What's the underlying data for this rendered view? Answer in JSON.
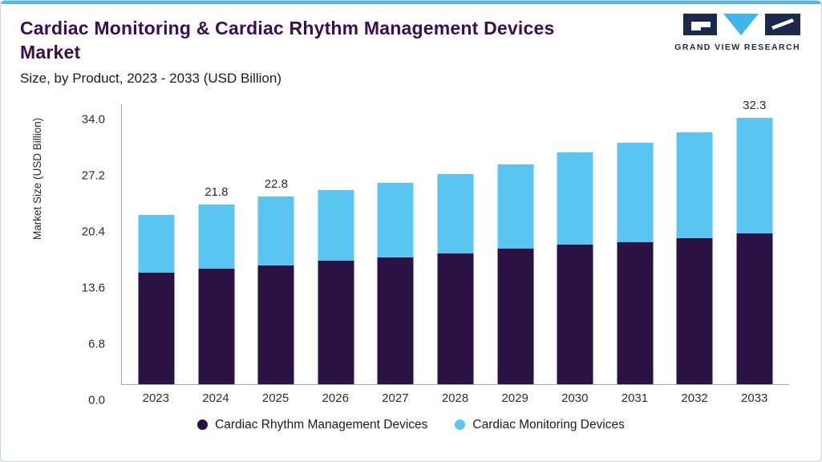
{
  "header": {
    "title": "Cardiac Monitoring & Cardiac Rhythm Management Devices Market",
    "subtitle": "Size, by Product, 2023 - 2033 (USD Billion)"
  },
  "logo": {
    "text": "GRAND VIEW RESEARCH"
  },
  "colors": {
    "accent_top": "#54b8e4",
    "title": "#3b0e52",
    "axis": "#a9a9a9",
    "logo_navy": "#1b2a4a",
    "logo_cyan": "#3fb7e8"
  },
  "chart_data": {
    "type": "bar",
    "stacked": true,
    "title": "Cardiac Monitoring & Cardiac Rhythm Management Devices Market",
    "subtitle": "Size, by Product, 2023 - 2033 (USD Billion)",
    "xlabel": "",
    "ylabel": "Market Size (USD Billion)",
    "ylim": [
      0,
      34
    ],
    "yticks": [
      "0.0",
      "6.8",
      "13.6",
      "20.4",
      "27.2",
      "34.0"
    ],
    "grid": false,
    "legend_position": "bottom",
    "categories": [
      "2023",
      "2024",
      "2025",
      "2026",
      "2027",
      "2028",
      "2029",
      "2030",
      "2031",
      "2032",
      "2033"
    ],
    "series": [
      {
        "name": "Cardiac Rhythm Management Devices",
        "color": "#2b1244",
        "values": [
          13.5,
          14.0,
          14.4,
          15.0,
          15.4,
          15.9,
          16.4,
          16.9,
          17.2,
          17.7,
          18.3
        ]
      },
      {
        "name": "Cardiac Monitoring Devices",
        "color": "#5bc5f1",
        "values": [
          7.0,
          7.8,
          8.4,
          8.6,
          9.0,
          9.6,
          10.3,
          11.2,
          12.1,
          12.9,
          14.0
        ]
      }
    ],
    "totals": [
      20.5,
      21.8,
      22.8,
      23.6,
      24.4,
      25.5,
      26.7,
      28.1,
      29.3,
      30.6,
      32.3
    ],
    "bar_labels": [
      "",
      "21.8",
      "22.8",
      "",
      "",
      "",
      "",
      "",
      "",
      "",
      "32.3"
    ]
  }
}
